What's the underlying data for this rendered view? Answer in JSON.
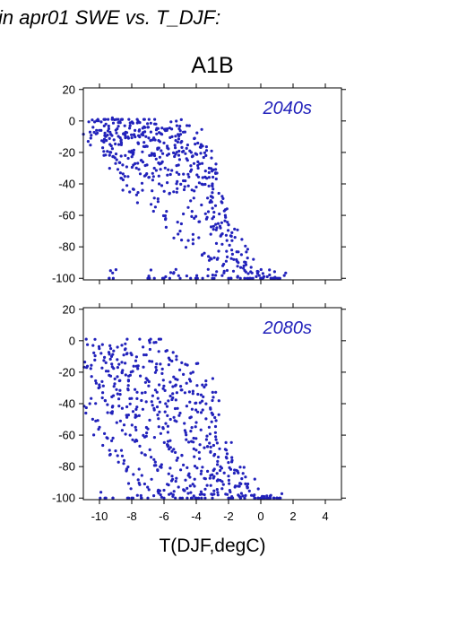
{
  "figure": {
    "title": "in apr01 SWE vs. T_DJF:",
    "subtitle": "A1B",
    "xlabel": "T(DJF,degC)"
  },
  "colors": {
    "points": "#2222bb",
    "label": "#2222bb",
    "axis": "#000000"
  },
  "chart_data": [
    {
      "type": "scatter",
      "panel": "top",
      "annotation": "2040s",
      "xlim": [
        -11,
        5
      ],
      "ylim": [
        -101,
        21
      ],
      "xticks": [
        -10,
        -8,
        -6,
        -4,
        -2,
        0,
        2,
        4
      ],
      "yticks": [
        20,
        0,
        -20,
        -40,
        -60,
        -80,
        -100
      ],
      "xticklabels_shown": false,
      "grid": false,
      "points": [
        [
          -10.7,
          -13
        ],
        [
          -10.4,
          -4
        ],
        [
          -10.1,
          1
        ],
        [
          -9.9,
          -6
        ],
        [
          -9.8,
          -17
        ],
        [
          -9.6,
          -2
        ],
        [
          -9.5,
          -9
        ],
        [
          -9.3,
          -20
        ],
        [
          -9.2,
          2
        ],
        [
          -9.1,
          -12
        ],
        [
          -9.0,
          -27
        ],
        [
          -8.9,
          -5
        ],
        [
          -8.8,
          -15
        ],
        [
          -8.7,
          -33
        ],
        [
          -8.6,
          1
        ],
        [
          -8.5,
          -8
        ],
        [
          -8.4,
          -22
        ],
        [
          -8.3,
          -41
        ],
        [
          -8.2,
          -11
        ],
        [
          -8.1,
          -3
        ],
        [
          -8.0,
          -19
        ],
        [
          -7.9,
          -28
        ],
        [
          -7.8,
          -6
        ],
        [
          -7.7,
          -47
        ],
        [
          -7.6,
          -14
        ],
        [
          -7.5,
          -1
        ],
        [
          -7.4,
          -25
        ],
        [
          -7.3,
          -9
        ],
        [
          -7.2,
          -35
        ],
        [
          -7.1,
          -16
        ],
        [
          -7.0,
          -4
        ],
        [
          -6.9,
          -22
        ],
        [
          -6.8,
          -53
        ],
        [
          -6.7,
          -12
        ],
        [
          -6.6,
          -30
        ],
        [
          -6.5,
          -2
        ],
        [
          -6.4,
          -18
        ],
        [
          -6.3,
          -40
        ],
        [
          -6.2,
          -8
        ],
        [
          -6.1,
          -26
        ],
        [
          -6.0,
          -14
        ],
        [
          -5.9,
          -62
        ],
        [
          -5.8,
          -5
        ],
        [
          -5.7,
          -21
        ],
        [
          -5.6,
          -34
        ],
        [
          -5.5,
          -10
        ],
        [
          -5.4,
          -45
        ],
        [
          -5.3,
          -17
        ],
        [
          -5.2,
          -3
        ],
        [
          -5.1,
          -28
        ],
        [
          -5.0,
          -70
        ],
        [
          -4.9,
          -13
        ],
        [
          -4.8,
          -38
        ],
        [
          -4.7,
          -7
        ],
        [
          -4.6,
          -24
        ],
        [
          -4.5,
          -55
        ],
        [
          -4.4,
          -19
        ],
        [
          -4.3,
          -31
        ],
        [
          -4.2,
          -78
        ],
        [
          -4.1,
          -11
        ],
        [
          -4.0,
          -42
        ],
        [
          -3.9,
          -26
        ],
        [
          -3.8,
          -64
        ],
        [
          -3.7,
          -15
        ],
        [
          -3.6,
          -36
        ],
        [
          -3.5,
          -84
        ],
        [
          -3.4,
          -22
        ],
        [
          -3.3,
          -49
        ],
        [
          -3.2,
          -30
        ],
        [
          -3.1,
          -72
        ],
        [
          -3.0,
          -40
        ],
        [
          -2.9,
          -58
        ],
        [
          -2.8,
          -33
        ],
        [
          -2.7,
          -88
        ],
        [
          -2.6,
          -46
        ],
        [
          -2.5,
          -68
        ],
        [
          -2.4,
          -52
        ],
        [
          -2.3,
          -91
        ],
        [
          -2.2,
          -60
        ],
        [
          -2.1,
          -76
        ],
        [
          -2.0,
          -66
        ],
        [
          -1.8,
          -82
        ],
        [
          -1.6,
          -74
        ],
        [
          -1.4,
          -90
        ],
        [
          -1.2,
          -85
        ],
        [
          -1.0,
          -95
        ],
        [
          -0.6,
          -93
        ],
        [
          -0.2,
          -97
        ],
        [
          0.4,
          -99
        ],
        [
          1.1,
          -100
        ],
        [
          -9.4,
          -100
        ],
        [
          -7.0,
          -100
        ],
        [
          -6.0,
          -100
        ],
        [
          -5.0,
          -100
        ],
        [
          -4.0,
          -100
        ],
        [
          -3.0,
          -100
        ],
        [
          -2.0,
          -100
        ],
        [
          -1.0,
          -100
        ],
        [
          0.0,
          -100
        ],
        [
          0.8,
          -100
        ]
      ]
    },
    {
      "type": "scatter",
      "panel": "bottom",
      "annotation": "2080s",
      "xlim": [
        -11,
        5
      ],
      "ylim": [
        -101,
        21
      ],
      "xticks": [
        -10,
        -8,
        -6,
        -4,
        -2,
        0,
        2,
        4
      ],
      "xticklabels": [
        "-10",
        "-8",
        "-6",
        "-4",
        "-2",
        "0",
        "2",
        "4"
      ],
      "yticks": [
        20,
        0,
        -20,
        -40,
        -60,
        -80,
        -100
      ],
      "xticklabels_shown": true,
      "grid": false,
      "points": [
        [
          -10.8,
          -17
        ],
        [
          -10.6,
          -40
        ],
        [
          -10.4,
          -3
        ],
        [
          -10.2,
          -27
        ],
        [
          -10.0,
          -55
        ],
        [
          -9.9,
          -8
        ],
        [
          -9.8,
          -33
        ],
        [
          -9.6,
          -14
        ],
        [
          -9.5,
          -62
        ],
        [
          -9.4,
          -22
        ],
        [
          -9.3,
          -5
        ],
        [
          -9.2,
          -45
        ],
        [
          -9.1,
          -29
        ],
        [
          -9.0,
          -70
        ],
        [
          -8.9,
          -12
        ],
        [
          -8.8,
          -37
        ],
        [
          -8.7,
          -51
        ],
        [
          -8.6,
          -20
        ],
        [
          -8.5,
          -78
        ],
        [
          -8.4,
          -2
        ],
        [
          -8.3,
          -42
        ],
        [
          -8.2,
          -25
        ],
        [
          -8.1,
          -60
        ],
        [
          -8.0,
          -9
        ],
        [
          -7.9,
          -85
        ],
        [
          -7.8,
          -31
        ],
        [
          -7.7,
          -48
        ],
        [
          -7.6,
          -16
        ],
        [
          -7.5,
          -67
        ],
        [
          -7.4,
          -38
        ],
        [
          -7.3,
          -4
        ],
        [
          -7.2,
          -91
        ],
        [
          -7.1,
          -24
        ],
        [
          -7.0,
          -56
        ],
        [
          -6.9,
          -13
        ],
        [
          -6.8,
          -74
        ],
        [
          -6.7,
          -35
        ],
        [
          -6.6,
          -44
        ],
        [
          -6.5,
          -1
        ],
        [
          -6.4,
          -82
        ],
        [
          -6.3,
          -28
        ],
        [
          -6.2,
          -59
        ],
        [
          -6.1,
          -18
        ],
        [
          -6.0,
          -95
        ],
        [
          -5.9,
          -40
        ],
        [
          -5.8,
          -66
        ],
        [
          -5.7,
          -11
        ],
        [
          -5.6,
          -50
        ],
        [
          -5.5,
          -86
        ],
        [
          -5.4,
          -23
        ],
        [
          -5.3,
          -71
        ],
        [
          -5.2,
          -33
        ],
        [
          -5.1,
          -93
        ],
        [
          -5.0,
          -46
        ],
        [
          -4.9,
          -14
        ],
        [
          -4.8,
          -79
        ],
        [
          -4.7,
          -57
        ],
        [
          -4.6,
          -27
        ],
        [
          -4.5,
          -97
        ],
        [
          -4.4,
          -39
        ],
        [
          -4.3,
          -64
        ],
        [
          -4.2,
          -20
        ],
        [
          -4.1,
          -88
        ],
        [
          -4.0,
          -52
        ],
        [
          -3.9,
          -34
        ],
        [
          -3.8,
          -75
        ],
        [
          -3.7,
          -96
        ],
        [
          -3.6,
          -44
        ],
        [
          -3.5,
          -68
        ],
        [
          -3.4,
          -28
        ],
        [
          -3.3,
          -83
        ],
        [
          -3.2,
          -55
        ],
        [
          -3.1,
          -92
        ],
        [
          -3.0,
          -38
        ],
        [
          -2.9,
          -73
        ],
        [
          -2.8,
          -61
        ],
        [
          -2.7,
          -89
        ],
        [
          -2.6,
          -47
        ],
        [
          -2.5,
          -80
        ],
        [
          -2.4,
          -94
        ],
        [
          -2.2,
          -69
        ],
        [
          -2.0,
          -86
        ],
        [
          -1.8,
          -77
        ],
        [
          -1.6,
          -93
        ],
        [
          -1.4,
          -84
        ],
        [
          -1.2,
          -97
        ],
        [
          -0.8,
          -91
        ],
        [
          -0.4,
          -98
        ],
        [
          0.2,
          -99
        ],
        [
          1.0,
          -100
        ],
        [
          -9.6,
          -100
        ],
        [
          -8.0,
          -100
        ],
        [
          -7.0,
          -100
        ],
        [
          -6.0,
          -100
        ],
        [
          -5.0,
          -100
        ],
        [
          -4.0,
          -100
        ],
        [
          -3.0,
          -100
        ],
        [
          -2.0,
          -100
        ],
        [
          -1.0,
          -100
        ],
        [
          0.0,
          -100
        ],
        [
          0.8,
          -100
        ]
      ]
    }
  ]
}
